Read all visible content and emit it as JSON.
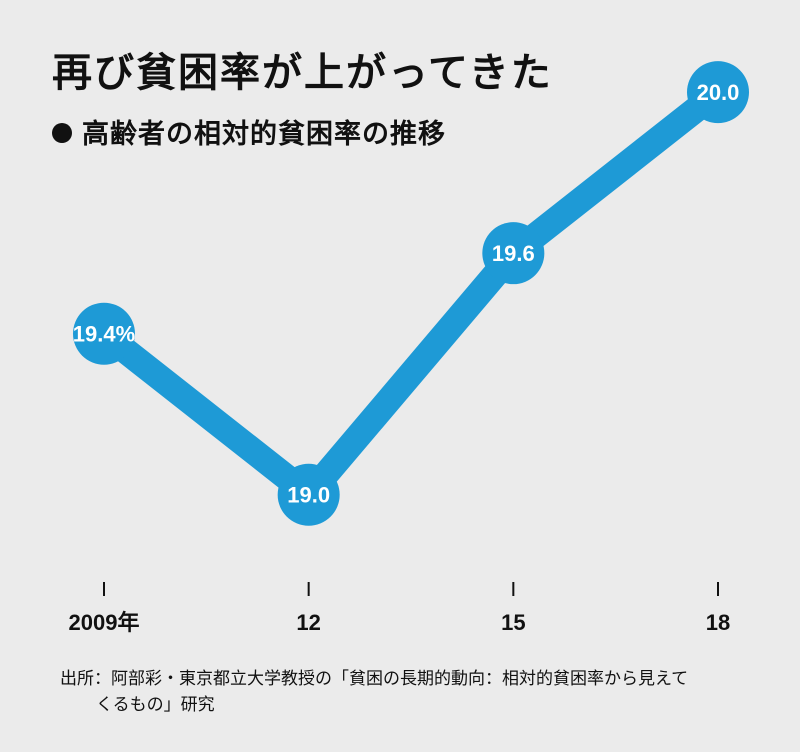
{
  "title": "再び貧困率が上がってきた",
  "subtitle": "高齢者の相対的貧困率の推移",
  "source_line1": "出所：阿部彩・東京都立大学教授の「貧困の長期的動向：相対的貧困率から見えて",
  "source_line2": "くるもの」研究",
  "colors": {
    "line": "#1e9ad6",
    "background": "#ebebeb",
    "text": "#111111",
    "label_text": "#ffffff"
  },
  "chart_data": {
    "type": "line",
    "title": "再び貧困率が上がってきた",
    "subtitle": "高齢者の相対的貧困率の推移",
    "x": [
      2009,
      2012,
      2015,
      2018
    ],
    "x_tick_labels": [
      "2009年",
      "12",
      "15",
      "18"
    ],
    "series": [
      {
        "values": [
          19.4,
          19.0,
          19.6,
          20.0
        ],
        "point_labels": [
          "19.4%",
          "19.0",
          "19.6",
          "20.0"
        ]
      }
    ],
    "ylim": [
      18.9,
      20.05
    ],
    "grid": false,
    "legend": "none"
  }
}
